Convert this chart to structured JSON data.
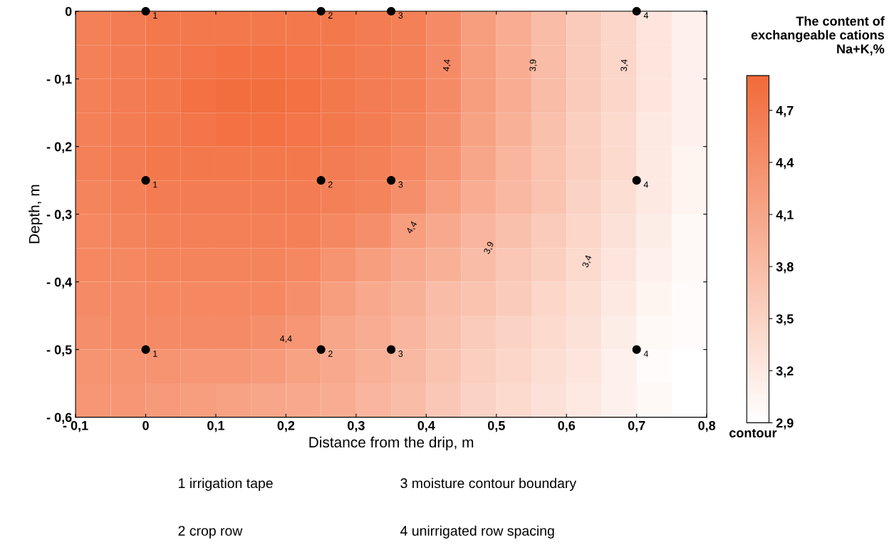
{
  "chart_data": {
    "type": "heatmap",
    "xlabel": "Distance from the drip, m",
    "ylabel": "Depth, m",
    "clabel": "The content of\nexchangeable cations\nNa+K,%",
    "x": [
      -0.075,
      -0.025,
      0.025,
      0.075,
      0.125,
      0.175,
      0.225,
      0.275,
      0.325,
      0.375,
      0.425,
      0.475,
      0.525,
      0.575,
      0.625,
      0.675,
      0.725,
      0.775
    ],
    "cells": [
      [
        4.6,
        4.65,
        4.7,
        4.7,
        4.7,
        4.7,
        4.7,
        4.7,
        4.65,
        4.6,
        4.45,
        4.2,
        4.0,
        3.8,
        3.6,
        3.45,
        3.25,
        3.1
      ],
      [
        4.6,
        4.65,
        4.7,
        4.75,
        4.8,
        4.8,
        4.75,
        4.7,
        4.65,
        4.6,
        4.45,
        4.2,
        4.0,
        3.8,
        3.6,
        3.45,
        3.25,
        3.1
      ],
      [
        4.6,
        4.65,
        4.7,
        4.8,
        4.85,
        4.85,
        4.8,
        4.7,
        4.65,
        4.6,
        4.45,
        4.2,
        4.0,
        3.8,
        3.6,
        3.45,
        3.25,
        3.1
      ],
      [
        4.6,
        4.65,
        4.7,
        4.75,
        4.8,
        4.8,
        4.75,
        4.7,
        4.65,
        4.55,
        4.4,
        4.15,
        3.95,
        3.75,
        3.55,
        3.4,
        3.2,
        3.1
      ],
      [
        4.6,
        4.65,
        4.7,
        4.7,
        4.7,
        4.7,
        4.7,
        4.65,
        4.6,
        4.5,
        4.35,
        4.1,
        3.9,
        3.7,
        3.55,
        3.4,
        3.2,
        3.05
      ],
      [
        4.55,
        4.6,
        4.65,
        4.65,
        4.65,
        4.65,
        4.65,
        4.6,
        4.55,
        4.4,
        4.2,
        4.0,
        3.85,
        3.7,
        3.5,
        3.35,
        3.2,
        3.05
      ],
      [
        4.5,
        4.55,
        4.6,
        4.6,
        4.6,
        4.6,
        4.6,
        4.5,
        4.4,
        4.2,
        4.05,
        3.9,
        3.75,
        3.6,
        3.45,
        3.3,
        3.15,
        3.0
      ],
      [
        4.5,
        4.5,
        4.55,
        4.55,
        4.55,
        4.55,
        4.5,
        4.35,
        4.2,
        4.05,
        3.95,
        3.8,
        3.65,
        3.55,
        3.4,
        3.25,
        3.1,
        3.0
      ],
      [
        4.45,
        4.45,
        4.5,
        4.5,
        4.5,
        4.5,
        4.4,
        4.2,
        4.05,
        3.95,
        3.8,
        3.7,
        3.6,
        3.45,
        3.35,
        3.2,
        3.05,
        2.95
      ],
      [
        4.4,
        4.45,
        4.45,
        4.45,
        4.45,
        4.4,
        4.3,
        4.1,
        4.0,
        3.9,
        3.75,
        3.6,
        3.5,
        3.4,
        3.3,
        3.15,
        3.0,
        2.95
      ],
      [
        4.35,
        4.35,
        4.35,
        4.3,
        4.3,
        4.25,
        4.15,
        4.05,
        3.95,
        3.85,
        3.7,
        3.55,
        3.45,
        3.35,
        3.25,
        3.1,
        2.95,
        2.9
      ],
      [
        4.3,
        4.3,
        4.25,
        4.2,
        4.15,
        4.1,
        4.05,
        4.0,
        3.9,
        3.8,
        3.65,
        3.5,
        3.4,
        3.3,
        3.2,
        3.1,
        3.0,
        2.9
      ]
    ],
    "colors": [
      "#ffffff",
      "#f26a3a"
    ],
    "clim": [
      2.9,
      4.9
    ],
    "cticks": [
      {
        "value": 2.9,
        "label": "2,9"
      },
      {
        "value": 3.2,
        "label": "3,2"
      },
      {
        "value": 3.5,
        "label": "3,5"
      },
      {
        "value": 3.8,
        "label": "3,8"
      },
      {
        "value": 4.1,
        "label": "4,1"
      },
      {
        "value": 4.4,
        "label": "4,4"
      },
      {
        "value": 4.7,
        "label": "4,7"
      }
    ],
    "xlim": [
      -0.1,
      0.8
    ],
    "xticks": [
      {
        "value": -0.1,
        "label": "- 0,1"
      },
      {
        "value": 0,
        "label": "0"
      },
      {
        "value": 0.1,
        "label": "0,1"
      },
      {
        "value": 0.2,
        "label": "0,2"
      },
      {
        "value": 0.3,
        "label": "0,3"
      },
      {
        "value": 0.4,
        "label": "0,4"
      },
      {
        "value": 0.5,
        "label": "0,5"
      },
      {
        "value": 0.6,
        "label": "0,6"
      },
      {
        "value": 0.7,
        "label": "0,7"
      },
      {
        "value": 0.8,
        "label": "0,8"
      }
    ],
    "ylim": [
      -0.6,
      0
    ],
    "yticks": [
      {
        "value": -0.6,
        "label": "- 0,6"
      },
      {
        "value": -0.5,
        "label": "- 0,5"
      },
      {
        "value": -0.4,
        "label": "- 0,4"
      },
      {
        "value": -0.3,
        "label": "- 0,3"
      },
      {
        "value": -0.2,
        "label": "- 0,2"
      },
      {
        "value": -0.1,
        "label": "- 0,1"
      },
      {
        "value": 0,
        "label": "0"
      }
    ],
    "grid": false,
    "marker": "circle",
    "series": [
      {
        "type": "scatter",
        "color": "#000000",
        "x": [
          0,
          0.25,
          0.35,
          0.7,
          0,
          0.25,
          0.35,
          0.7,
          0,
          0.25,
          0.35,
          0.7
        ],
        "values": [
          0,
          0,
          0,
          0,
          -0.25,
          -0.25,
          -0.25,
          -0.25,
          -0.5,
          -0.5,
          -0.5,
          -0.5
        ]
      }
    ],
    "annotations": [
      {
        "text": "1",
        "x": 0,
        "y": 0
      },
      {
        "text": "2",
        "x": 0.25,
        "y": 0
      },
      {
        "text": "3",
        "x": 0.35,
        "y": 0
      },
      {
        "text": "4",
        "x": 0.7,
        "y": 0
      },
      {
        "text": "1",
        "x": 0,
        "y": -0.25
      },
      {
        "text": "2",
        "x": 0.25,
        "y": -0.25
      },
      {
        "text": "3",
        "x": 0.35,
        "y": -0.25
      },
      {
        "text": "4",
        "x": 0.7,
        "y": -0.25
      },
      {
        "text": "1",
        "x": 0,
        "y": -0.5
      },
      {
        "text": "2",
        "x": 0.25,
        "y": -0.5
      },
      {
        "text": "3",
        "x": 0.35,
        "y": -0.5
      },
      {
        "text": "4",
        "x": 0.7,
        "y": -0.5
      },
      "contour",
      "1 irrigation tape",
      "2 crop row",
      "3 moisture contour boundary",
      "4 unirrigated row spacing",
      "4,4",
      "4,4",
      "4,4",
      "3,9",
      "3,9",
      "3,4",
      "3,4"
    ]
  }
}
